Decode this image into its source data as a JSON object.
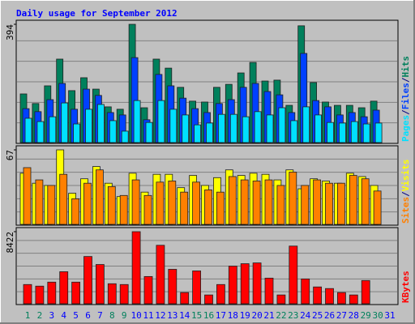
{
  "title": "Daily usage for September 2012",
  "legend_separator": "/",
  "chart_data": [
    {
      "type": "bar",
      "ylim": [
        0,
        394
      ],
      "yticks": [
        394
      ],
      "series": [
        {
          "name": "Hits",
          "color": "#00805c",
          "values": [
            162,
            130,
            189,
            278,
            173,
            216,
            178,
            119,
            111,
            394,
            116,
            278,
            248,
            184,
            138,
            135,
            184,
            194,
            232,
            267,
            205,
            208,
            124,
            389,
            200,
            135,
            124,
            124,
            116,
            138,
            0
          ]
        },
        {
          "name": "Files",
          "color": "#0040ff",
          "values": [
            113,
            103,
            143,
            197,
            111,
            178,
            157,
            100,
            92,
            283,
            76,
            227,
            189,
            148,
            113,
            100,
            130,
            143,
            184,
            197,
            170,
            159,
            100,
            297,
            140,
            119,
            92,
            100,
            86,
            108,
            0
          ]
        },
        {
          "name": "Pages",
          "color": "#00e0ff",
          "values": [
            81,
            70,
            86,
            132,
            62,
            111,
            127,
            73,
            38,
            140,
            67,
            140,
            111,
            92,
            59,
            65,
            94,
            94,
            86,
            103,
            92,
            116,
            73,
            119,
            92,
            67,
            65,
            70,
            62,
            65,
            0
          ]
        }
      ]
    },
    {
      "type": "bar",
      "ylim": [
        0,
        67
      ],
      "yticks": [
        67
      ],
      "series": [
        {
          "name": "Visits",
          "color": "#ffff00",
          "values": [
            46,
            37,
            35,
            67,
            28,
            41,
            52,
            37,
            25,
            46,
            29,
            45,
            45,
            33,
            44,
            35,
            42,
            49,
            44,
            46,
            45,
            40,
            49,
            32,
            41,
            39,
            37,
            46,
            43,
            35,
            0
          ]
        },
        {
          "name": "Sites",
          "color": "#ff8000",
          "values": [
            51,
            40,
            35,
            45,
            23,
            37,
            49,
            34,
            26,
            40,
            26,
            38,
            39,
            29,
            38,
            31,
            29,
            43,
            40,
            39,
            40,
            35,
            47,
            35,
            40,
            37,
            37,
            44,
            41,
            30,
            0
          ]
        }
      ]
    },
    {
      "type": "bar",
      "ylim": [
        0,
        8422
      ],
      "yticks": [
        8422
      ],
      "categories": [
        "1",
        "2",
        "3",
        "4",
        "5",
        "6",
        "7",
        "8",
        "9",
        "10",
        "11",
        "12",
        "13",
        "14",
        "15",
        "16",
        "17",
        "18",
        "19",
        "20",
        "21",
        "22",
        "23",
        "24",
        "25",
        "26",
        "27",
        "28",
        "29",
        "30",
        "31"
      ],
      "category_colors": [
        "#00805c",
        "#00805c",
        "#0000ff",
        "#0000ff",
        "#0000ff",
        "#0000ff",
        "#0000ff",
        "#00805c",
        "#00805c",
        "#0000ff",
        "#0000ff",
        "#0000ff",
        "#0000ff",
        "#0000ff",
        "#00805c",
        "#00805c",
        "#0000ff",
        "#0000ff",
        "#0000ff",
        "#0000ff",
        "#0000ff",
        "#00805c",
        "#00805c",
        "#0000ff",
        "#0000ff",
        "#0000ff",
        "#0000ff",
        "#0000ff",
        "#00805c",
        "#00805c",
        "#0000ff"
      ],
      "series": [
        {
          "name": "KBytes",
          "color": "#ff0000",
          "values": [
            2246,
            2059,
            2527,
            3743,
            2527,
            5521,
            4585,
            2340,
            2246,
            8422,
            3182,
            6831,
            4024,
            1310,
            3837,
            1029,
            2246,
            4398,
            4679,
            4772,
            2995,
            1029,
            6738,
            2901,
            1965,
            1778,
            1310,
            1029,
            2714,
            0,
            0
          ]
        }
      ]
    }
  ]
}
